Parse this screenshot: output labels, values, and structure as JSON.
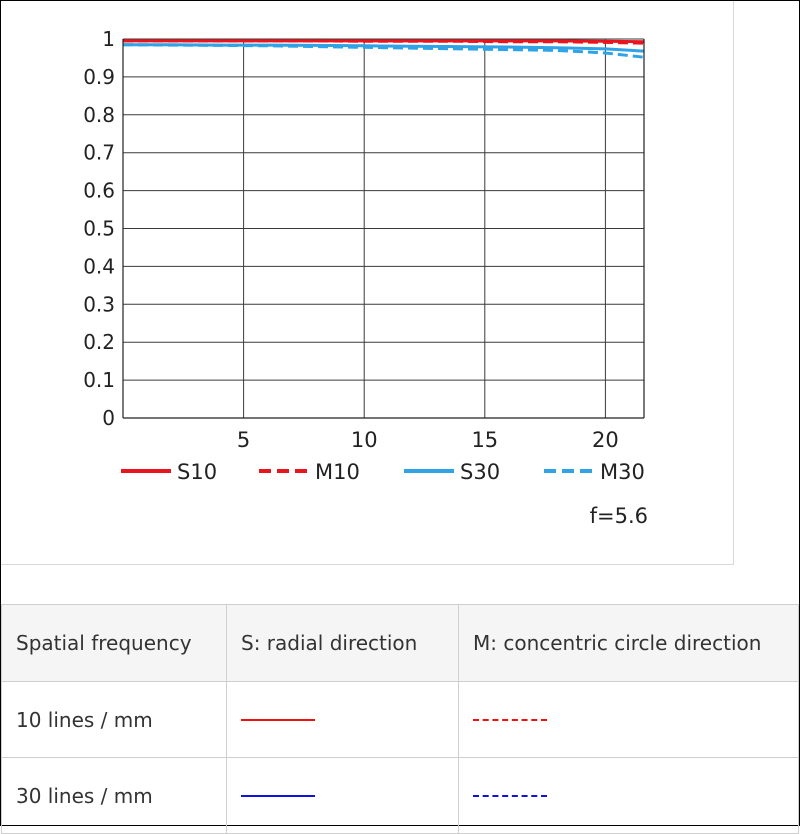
{
  "chart_data": {
    "type": "line",
    "x": [
      0,
      2,
      4,
      6,
      8,
      10,
      12,
      14,
      16,
      18,
      20,
      21.6
    ],
    "xlim": [
      0,
      21.6
    ],
    "ylim": [
      0,
      1
    ],
    "x_ticks": [
      "5",
      "10",
      "15",
      "20"
    ],
    "y_ticks": [
      "0",
      "0.1",
      "0.2",
      "0.3",
      "0.4",
      "0.5",
      "0.6",
      "0.7",
      "0.8",
      "0.9",
      "1"
    ],
    "grid": true,
    "legend_position": "bottom",
    "annotation": "f=5.6",
    "series": [
      {
        "name": "S10",
        "color": "#e8141e",
        "dash": false,
        "values": [
          0.995,
          0.995,
          0.995,
          0.995,
          0.995,
          0.995,
          0.995,
          0.995,
          0.995,
          0.995,
          0.994,
          0.993
        ]
      },
      {
        "name": "M10",
        "color": "#e8141e",
        "dash": true,
        "values": [
          0.995,
          0.995,
          0.995,
          0.995,
          0.995,
          0.994,
          0.994,
          0.994,
          0.993,
          0.993,
          0.991,
          0.989
        ]
      },
      {
        "name": "S30",
        "color": "#2fa3e6",
        "dash": false,
        "values": [
          0.985,
          0.985,
          0.984,
          0.984,
          0.983,
          0.982,
          0.981,
          0.98,
          0.979,
          0.977,
          0.974,
          0.968
        ]
      },
      {
        "name": "M30",
        "color": "#2fa3e6",
        "dash": true,
        "values": [
          0.985,
          0.984,
          0.983,
          0.982,
          0.98,
          0.978,
          0.976,
          0.974,
          0.972,
          0.97,
          0.963,
          0.952
        ]
      }
    ]
  },
  "table": {
    "headers": [
      "Spatial frequency",
      "S: radial direction",
      "M: concentric circle direction"
    ],
    "rows": [
      {
        "label": "10 lines / mm",
        "color": "#ee1111"
      },
      {
        "label": "30 lines / mm",
        "color": "#1111dd"
      }
    ]
  }
}
